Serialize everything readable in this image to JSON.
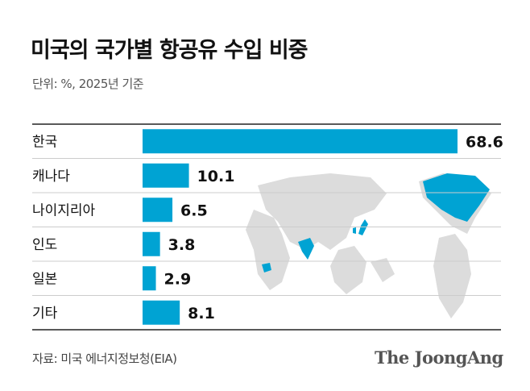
{
  "title": "미국의 국가별 항공유 수입 비중",
  "subtitle": "단위: %, 2025년 기준",
  "source": "자료: 미국 에너지정보청(EIA)",
  "logo": "The JoongAng",
  "colors": {
    "bar": "#00a3d3",
    "map_land": "#dcdcdc",
    "map_highlight": "#00a3d3"
  },
  "chart_data": {
    "type": "bar",
    "orientation": "horizontal",
    "title": "미국의 국가별 항공유 수입 비중",
    "subtitle": "단위: %, 2025년 기준",
    "categories": [
      "한국",
      "캐나다",
      "나이지리아",
      "인도",
      "일본",
      "기타"
    ],
    "values": [
      68.6,
      10.1,
      6.5,
      3.8,
      2.9,
      8.1
    ],
    "value_labels": [
      "68.6",
      "10.1",
      "6.5",
      "3.8",
      "2.9",
      "8.1"
    ],
    "grid": false
  }
}
